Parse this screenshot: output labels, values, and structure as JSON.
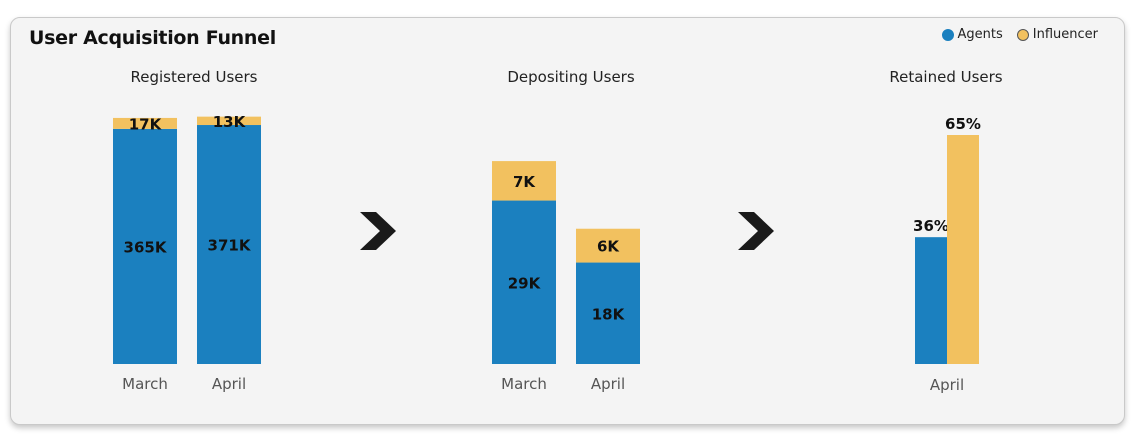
{
  "header": {
    "title": "User Acquisition Funnel"
  },
  "legend": {
    "items": [
      {
        "name": "Agents",
        "color": "#1b80bf"
      },
      {
        "name": "Influencer",
        "color": "#f2c15f"
      }
    ]
  },
  "chart_data": [
    {
      "type": "bar",
      "stacked": true,
      "title": "Registered Users",
      "categories": [
        "March",
        "April"
      ],
      "series": [
        {
          "name": "Agents",
          "values": [
            365,
            371
          ],
          "labels": [
            "365K",
            "371K"
          ],
          "color": "#1b80bf"
        },
        {
          "name": "Influencer",
          "values": [
            17,
            13
          ],
          "labels": [
            "17K",
            "13K"
          ],
          "color": "#f2c15f"
        }
      ],
      "ylim": [
        0,
        385
      ]
    },
    {
      "type": "bar",
      "stacked": true,
      "title": "Depositing Users",
      "categories": [
        "March",
        "April"
      ],
      "series": [
        {
          "name": "Agents",
          "values": [
            29,
            18
          ],
          "labels": [
            "29K",
            "18K"
          ],
          "color": "#1b80bf"
        },
        {
          "name": "Influencer",
          "values": [
            7,
            6
          ],
          "labels": [
            "7K",
            "6K"
          ],
          "color": "#f2c15f"
        }
      ],
      "ylim": [
        0,
        44
      ]
    },
    {
      "type": "bar",
      "stacked": false,
      "title": "Retained Users",
      "categories": [
        "April"
      ],
      "series": [
        {
          "name": "Agents",
          "values": [
            36
          ],
          "labels": [
            "36%"
          ],
          "color": "#1b80bf"
        },
        {
          "name": "Influencer",
          "values": [
            65
          ],
          "labels": [
            "65%"
          ],
          "color": "#f2c15f"
        }
      ],
      "ylim": [
        0,
        65
      ]
    }
  ],
  "arrows": [
    {
      "icon": "chevron-right-icon"
    },
    {
      "icon": "chevron-right-icon"
    }
  ]
}
